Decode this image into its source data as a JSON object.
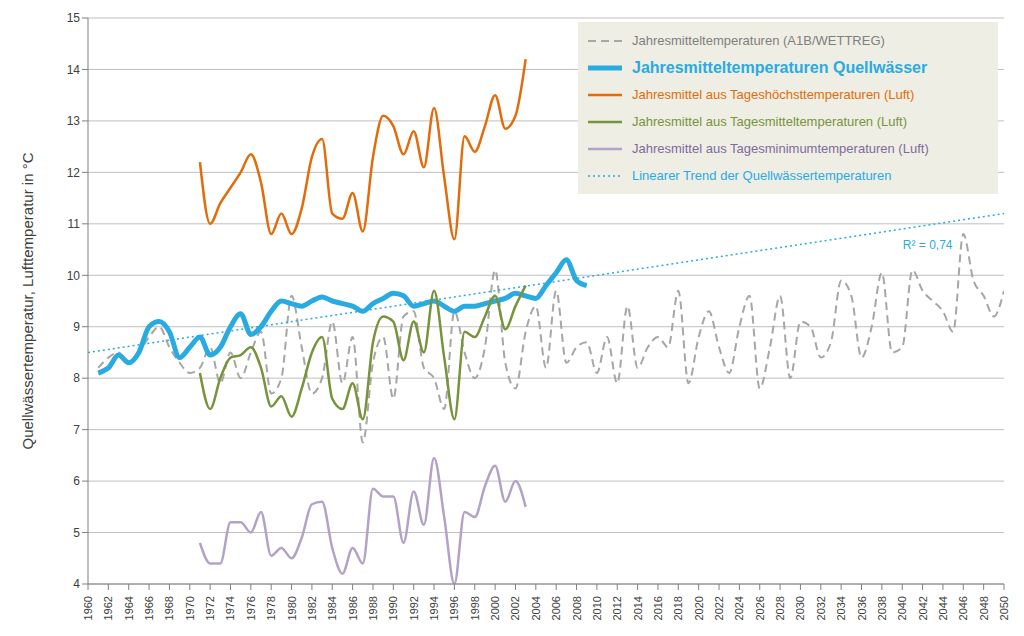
{
  "chart_data": {
    "type": "line",
    "ylabel": "Quellwässertemperatur, Lufttemperatur in °C",
    "xlim": [
      1960,
      2050
    ],
    "xticks": [
      1960,
      1962,
      1964,
      1966,
      1968,
      1970,
      1972,
      1974,
      1976,
      1978,
      1980,
      1982,
      1984,
      1986,
      1988,
      1990,
      1992,
      1994,
      1996,
      1998,
      2000,
      2002,
      2004,
      2006,
      2008,
      2010,
      2012,
      2014,
      2016,
      2018,
      2020,
      2022,
      2024,
      2026,
      2028,
      2030,
      2032,
      2034,
      2036,
      2038,
      2040,
      2042,
      2044,
      2046,
      2048,
      2050
    ],
    "ylim": [
      4,
      15
    ],
    "yticks": [
      4,
      5,
      6,
      7,
      8,
      9,
      10,
      11,
      12,
      13,
      14,
      15
    ],
    "grid": true,
    "legend": "top-right",
    "series": [
      {
        "name": "Jahresmitteltemperaturen (A1B/WETTREG)",
        "color": "#a6a6a6",
        "line_style": "dashed",
        "x": [
          1961,
          1962,
          1963,
          1964,
          1965,
          1966,
          1967,
          1968,
          1969,
          1970,
          1971,
          1972,
          1973,
          1974,
          1975,
          1976,
          1977,
          1978,
          1979,
          1980,
          1981,
          1982,
          1983,
          1984,
          1985,
          1986,
          1987,
          1988,
          1989,
          1990,
          1991,
          1992,
          1993,
          1994,
          1995,
          1996,
          1997,
          1998,
          1999,
          2000,
          2001,
          2002,
          2003,
          2004,
          2005,
          2006,
          2007,
          2008,
          2009,
          2010,
          2011,
          2012,
          2013,
          2014,
          2015,
          2016,
          2017,
          2018,
          2019,
          2020,
          2021,
          2022,
          2023,
          2024,
          2025,
          2026,
          2027,
          2028,
          2029,
          2030,
          2031,
          2032,
          2033,
          2034,
          2035,
          2036,
          2037,
          2038,
          2039,
          2040,
          2041,
          2042,
          2043,
          2044,
          2045,
          2046,
          2047,
          2048,
          2049,
          2050
        ],
        "values": [
          8.2,
          8.4,
          8.5,
          8.3,
          8.5,
          8.8,
          9.0,
          8.6,
          8.3,
          8.1,
          8.2,
          8.6,
          7.9,
          8.5,
          8.0,
          8.5,
          8.9,
          7.7,
          8.0,
          9.6,
          8.6,
          7.7,
          8.0,
          9.1,
          7.9,
          8.8,
          6.75,
          8.3,
          8.8,
          7.6,
          9.2,
          9.3,
          8.2,
          8.0,
          7.4,
          9.3,
          8.5,
          8.0,
          8.6,
          10.1,
          8.3,
          7.8,
          8.9,
          9.4,
          8.2,
          9.7,
          8.3,
          8.6,
          8.7,
          8.1,
          8.8,
          7.9,
          9.4,
          8.2,
          8.6,
          8.8,
          8.6,
          9.7,
          7.9,
          8.8,
          9.3,
          8.6,
          8.1,
          9.0,
          9.6,
          7.8,
          8.6,
          9.6,
          8.0,
          9.1,
          9.0,
          8.4,
          8.7,
          9.9,
          9.6,
          8.4,
          9.0,
          10.05,
          8.5,
          8.6,
          10.1,
          9.7,
          9.5,
          9.3,
          8.9,
          10.8,
          9.9,
          9.6,
          9.2,
          9.7
        ]
      },
      {
        "name": "Jahresmitteltemperaturen Quellwässer",
        "color": "#29abe2",
        "line_style": "solid",
        "x": [
          1961,
          1962,
          1963,
          1964,
          1965,
          1966,
          1967,
          1968,
          1969,
          1970,
          1971,
          1972,
          1973,
          1974,
          1975,
          1976,
          1977,
          1978,
          1979,
          1980,
          1981,
          1982,
          1983,
          1984,
          1985,
          1986,
          1987,
          1988,
          1989,
          1990,
          1991,
          1992,
          1993,
          1994,
          1995,
          1996,
          1997,
          1998,
          1999,
          2000,
          2001,
          2002,
          2003,
          2004,
          2005,
          2006,
          2007,
          2008,
          2009
        ],
        "values": [
          8.1,
          8.2,
          8.45,
          8.3,
          8.5,
          9.0,
          9.1,
          8.9,
          8.4,
          8.6,
          8.8,
          8.45,
          8.6,
          9.0,
          9.25,
          8.85,
          9.0,
          9.3,
          9.5,
          9.45,
          9.4,
          9.5,
          9.58,
          9.5,
          9.45,
          9.4,
          9.3,
          9.45,
          9.55,
          9.65,
          9.6,
          9.4,
          9.45,
          9.5,
          9.4,
          9.3,
          9.4,
          9.4,
          9.45,
          9.5,
          9.55,
          9.65,
          9.6,
          9.55,
          9.8,
          10.05,
          10.3,
          9.9,
          9.8
        ]
      },
      {
        "name": "Jahresmittel aus Tageshöchsttemperaturen (Luft)",
        "color": "#e36c0a",
        "line_style": "solid",
        "x": [
          1971,
          1972,
          1973,
          1974,
          1975,
          1976,
          1977,
          1978,
          1979,
          1980,
          1981,
          1982,
          1983,
          1984,
          1985,
          1986,
          1987,
          1988,
          1989,
          1990,
          1991,
          1992,
          1993,
          1994,
          1995,
          1996,
          1997,
          1998,
          1999,
          2000,
          2001,
          2002,
          2003
        ],
        "values": [
          12.2,
          11.0,
          11.4,
          11.7,
          12.0,
          12.35,
          11.8,
          10.8,
          11.2,
          10.8,
          11.3,
          12.3,
          12.65,
          11.2,
          11.1,
          11.6,
          10.85,
          12.3,
          13.1,
          12.9,
          12.35,
          12.8,
          12.1,
          13.25,
          11.9,
          10.7,
          12.7,
          12.4,
          12.9,
          13.5,
          12.85,
          13.1,
          14.2
        ]
      },
      {
        "name": "Jahresmittel aus Tagesmitteltemperaturen (Luft)",
        "color": "#77933c",
        "line_style": "solid",
        "x": [
          1971,
          1972,
          1973,
          1974,
          1975,
          1976,
          1977,
          1978,
          1979,
          1980,
          1981,
          1982,
          1983,
          1984,
          1985,
          1986,
          1987,
          1988,
          1989,
          1990,
          1991,
          1992,
          1993,
          1994,
          1995,
          1996,
          1997,
          1998,
          1999,
          2000,
          2001,
          2002,
          2003
        ],
        "values": [
          8.1,
          7.4,
          8.0,
          8.4,
          8.45,
          8.6,
          8.2,
          7.45,
          7.65,
          7.25,
          7.8,
          8.5,
          8.8,
          7.6,
          7.4,
          7.9,
          7.2,
          8.7,
          9.2,
          9.1,
          8.35,
          9.1,
          8.5,
          9.7,
          8.4,
          7.2,
          8.9,
          8.8,
          9.2,
          9.6,
          8.95,
          9.4,
          9.8
        ]
      },
      {
        "name": "Jahresmittel aus Tagesminimumtemperaturen (Luft)",
        "color": "#b3a2c7",
        "line_style": "solid",
        "x": [
          1971,
          1972,
          1973,
          1974,
          1975,
          1976,
          1977,
          1978,
          1979,
          1980,
          1981,
          1982,
          1983,
          1984,
          1985,
          1986,
          1987,
          1988,
          1989,
          1990,
          1991,
          1992,
          1993,
          1994,
          1995,
          1996,
          1997,
          1998,
          1999,
          2000,
          2001,
          2002,
          2003
        ],
        "values": [
          4.8,
          4.4,
          4.4,
          5.2,
          5.2,
          5.0,
          5.4,
          4.55,
          4.7,
          4.5,
          4.9,
          5.55,
          5.6,
          4.7,
          4.2,
          4.7,
          4.4,
          5.85,
          5.7,
          5.7,
          4.8,
          5.8,
          5.15,
          6.45,
          5.3,
          4.0,
          5.4,
          5.3,
          5.9,
          6.3,
          5.6,
          6.0,
          5.5
        ]
      },
      {
        "name": "Linearer Trend der Quellwässertemperaturen",
        "color": "#29abe2",
        "line_style": "dotted",
        "x": [
          1960,
          2050
        ],
        "values": [
          8.5,
          11.2
        ]
      }
    ],
    "annotations": [
      {
        "text": "R² = 0,74",
        "x": 2042.5,
        "y": 10.6,
        "color": "#29abe2"
      }
    ]
  }
}
